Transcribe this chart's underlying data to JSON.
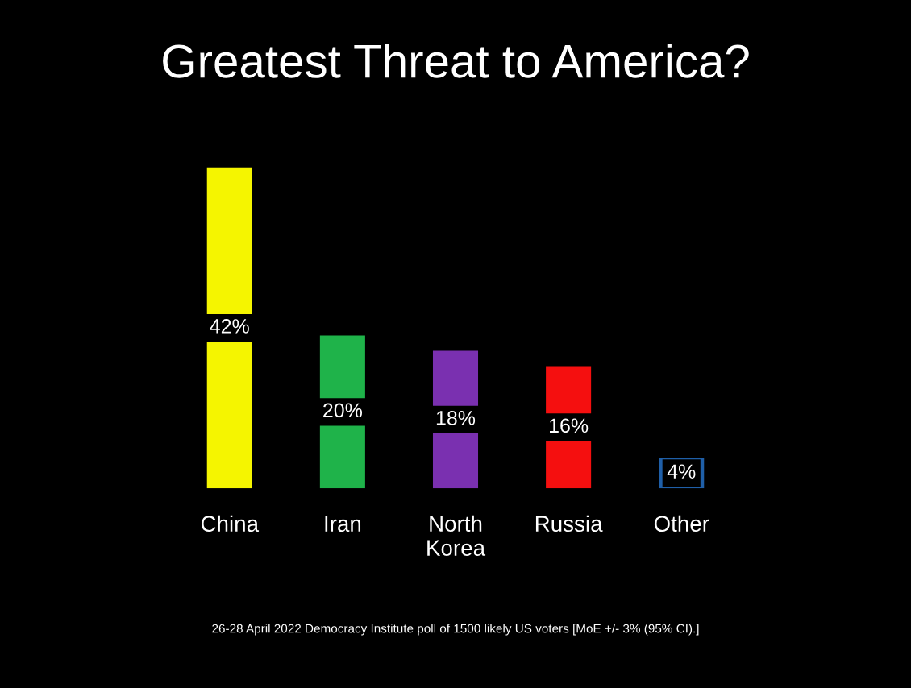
{
  "chart_data": {
    "type": "bar",
    "title": "Greatest Threat to America?",
    "categories": [
      "China",
      "Iran",
      "North\nKorea",
      "Russia",
      "Other"
    ],
    "values": [
      42,
      20,
      18,
      16,
      4
    ],
    "colors": [
      "#f5f500",
      "#1fb34a",
      "#7a30b0",
      "#f50f0f",
      "#1f5fa8"
    ],
    "value_labels": [
      "42%",
      "20%",
      "18%",
      "16%",
      "4%"
    ],
    "annotations": [
      "26-28 April 2022 Democracy Institute poll of 1500 likely US voters [MoE +/- 3% (95% CI).]"
    ],
    "grid": false,
    "legend": false
  }
}
